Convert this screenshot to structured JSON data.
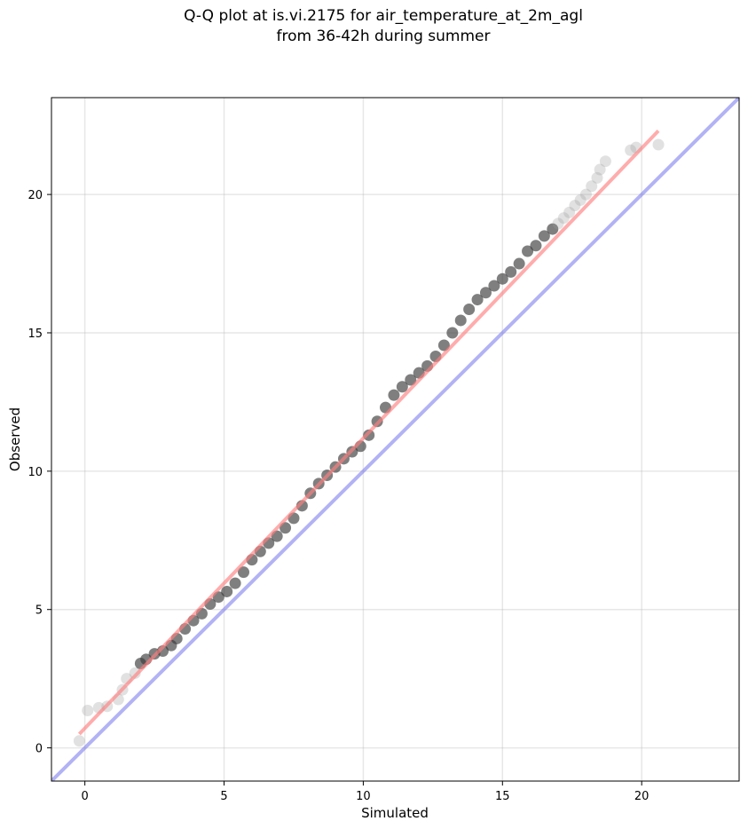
{
  "chart_data": {
    "type": "scatter",
    "title_lines": [
      "Q-Q plot at is.vi.2175 for air_temperature_at_2m_agl",
      "from 36-42h during summer"
    ],
    "xlabel": "Simulated",
    "ylabel": "Observed",
    "xlim": [
      -1.2,
      23.5
    ],
    "ylim": [
      -1.2,
      23.5
    ],
    "xticks": [
      0,
      5,
      10,
      15,
      20
    ],
    "yticks": [
      0,
      5,
      10,
      15,
      20
    ],
    "xtick_labels": [
      "0",
      "5",
      "10",
      "15",
      "20"
    ],
    "ytick_labels": [
      "0",
      "5",
      "10",
      "15",
      "20"
    ],
    "grid": true,
    "legend": "none",
    "series": [
      {
        "kind": "quantile-points",
        "color": "#7f7f7f",
        "x": [
          -0.2,
          0.1,
          0.5,
          0.8,
          1.2,
          1.35,
          1.5,
          1.8,
          2.0,
          2.2,
          2.5,
          2.8,
          3.1,
          3.3,
          3.6,
          3.9,
          4.2,
          4.5,
          4.8,
          5.1,
          5.4,
          5.7,
          6.0,
          6.3,
          6.6,
          6.9,
          7.2,
          7.5,
          7.8,
          8.1,
          8.4,
          8.7,
          9.0,
          9.3,
          9.6,
          9.9,
          10.2,
          10.5,
          10.8,
          11.1,
          11.4,
          11.7,
          12.0,
          12.3,
          12.6,
          12.9,
          13.2,
          13.5,
          13.8,
          14.1,
          14.4,
          14.7,
          15.0,
          15.3,
          15.6,
          15.9,
          16.2,
          16.5,
          16.8,
          17.0,
          17.2,
          17.4,
          17.6,
          17.8,
          18.0,
          18.2,
          18.4,
          18.5,
          18.7,
          19.6,
          19.8,
          20.6
        ],
        "y": [
          0.25,
          1.35,
          1.45,
          1.5,
          1.75,
          2.1,
          2.5,
          2.7,
          3.05,
          3.2,
          3.4,
          3.5,
          3.7,
          3.95,
          4.3,
          4.6,
          4.85,
          5.2,
          5.45,
          5.65,
          5.95,
          6.35,
          6.8,
          7.1,
          7.4,
          7.65,
          7.95,
          8.3,
          8.75,
          9.2,
          9.55,
          9.85,
          10.15,
          10.45,
          10.7,
          10.9,
          11.3,
          11.8,
          12.3,
          12.75,
          13.05,
          13.3,
          13.55,
          13.8,
          14.15,
          14.55,
          15.0,
          15.45,
          15.85,
          16.2,
          16.45,
          16.7,
          16.95,
          17.2,
          17.5,
          17.95,
          18.15,
          18.5,
          18.75,
          18.95,
          19.15,
          19.35,
          19.6,
          19.8,
          20.0,
          20.3,
          20.6,
          20.9,
          21.2,
          21.6,
          21.7,
          21.8
        ]
      },
      {
        "kind": "fit-line",
        "color": "#ff7f7f",
        "x": [
          -0.2,
          20.6
        ],
        "y": [
          0.5,
          22.3
        ]
      },
      {
        "kind": "identity-line",
        "color": "#7f7fef",
        "x": [
          -1.2,
          23.5
        ],
        "y": [
          -1.2,
          23.5
        ]
      }
    ]
  }
}
